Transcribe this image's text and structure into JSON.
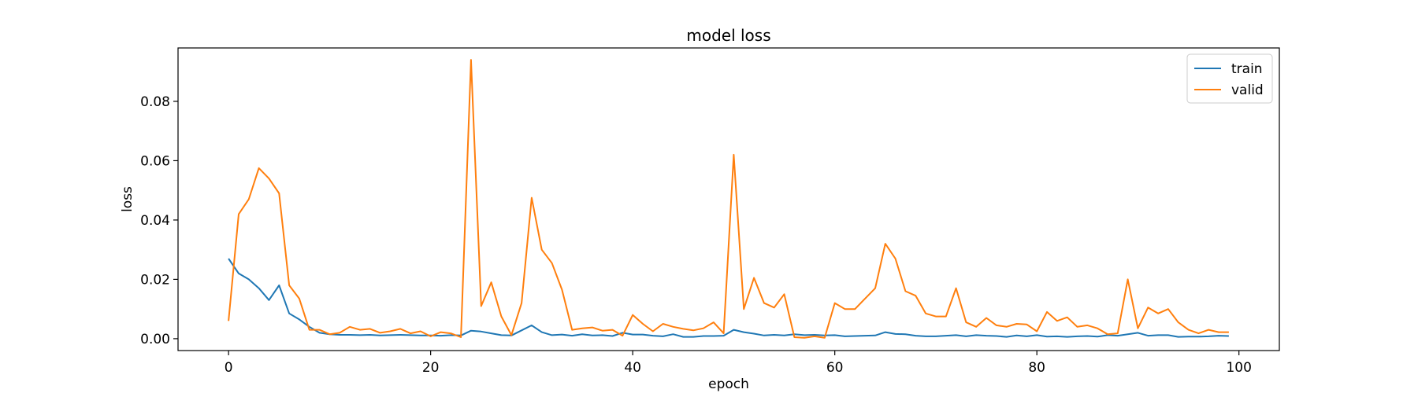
{
  "chart_data": {
    "type": "line",
    "title": "model loss",
    "xlabel": "epoch",
    "ylabel": "loss",
    "xlim": [
      -5,
      104
    ],
    "ylim": [
      -0.004,
      0.098
    ],
    "xticks": [
      0,
      20,
      40,
      60,
      80,
      100
    ],
    "yticks": [
      0.0,
      0.02,
      0.04,
      0.06,
      0.08
    ],
    "xtick_labels": [
      "0",
      "20",
      "40",
      "60",
      "80",
      "100"
    ],
    "ytick_labels": [
      "0.00",
      "0.02",
      "0.04",
      "0.06",
      "0.08"
    ],
    "grid": false,
    "legend": "top-right",
    "x": [
      0,
      1,
      2,
      3,
      4,
      5,
      6,
      7,
      8,
      9,
      10,
      11,
      12,
      13,
      14,
      15,
      16,
      17,
      18,
      19,
      20,
      21,
      22,
      23,
      24,
      25,
      26,
      27,
      28,
      29,
      30,
      31,
      32,
      33,
      34,
      35,
      36,
      37,
      38,
      39,
      40,
      41,
      42,
      43,
      44,
      45,
      46,
      47,
      48,
      49,
      50,
      51,
      52,
      53,
      54,
      55,
      56,
      57,
      58,
      59,
      60,
      61,
      62,
      63,
      64,
      65,
      66,
      67,
      68,
      69,
      70,
      71,
      72,
      73,
      74,
      75,
      76,
      77,
      78,
      79,
      80,
      81,
      82,
      83,
      84,
      85,
      86,
      87,
      88,
      89,
      90,
      91,
      92,
      93,
      94,
      95,
      96,
      97,
      98,
      99
    ],
    "series": [
      {
        "name": "train",
        "color": "#1f77b4",
        "values": [
          0.027,
          0.022,
          0.02,
          0.017,
          0.013,
          0.018,
          0.0085,
          0.0065,
          0.004,
          0.002,
          0.0015,
          0.0013,
          0.0013,
          0.0012,
          0.0013,
          0.0011,
          0.0012,
          0.0013,
          0.0012,
          0.0011,
          0.0011,
          0.001,
          0.0012,
          0.0011,
          0.0027,
          0.0024,
          0.0018,
          0.0012,
          0.0011,
          0.0028,
          0.0045,
          0.0022,
          0.0012,
          0.0014,
          0.001,
          0.0015,
          0.0011,
          0.0012,
          0.0009,
          0.002,
          0.0014,
          0.0014,
          0.001,
          0.0008,
          0.0015,
          0.0006,
          0.0006,
          0.0009,
          0.0009,
          0.001,
          0.003,
          0.0022,
          0.0017,
          0.0011,
          0.0013,
          0.0011,
          0.0015,
          0.0012,
          0.0013,
          0.0011,
          0.0012,
          0.0008,
          0.0009,
          0.001,
          0.0011,
          0.0022,
          0.0016,
          0.0015,
          0.001,
          0.0008,
          0.0008,
          0.001,
          0.0012,
          0.0008,
          0.0012,
          0.001,
          0.0009,
          0.0006,
          0.0011,
          0.0008,
          0.0012,
          0.0007,
          0.0008,
          0.0006,
          0.0008,
          0.0009,
          0.0007,
          0.0012,
          0.001,
          0.0015,
          0.002,
          0.001,
          0.0012,
          0.0012,
          0.0006,
          0.0007,
          0.0007,
          0.0008,
          0.001,
          0.0009
        ]
      },
      {
        "name": "valid",
        "color": "#ff7f0e",
        "values": [
          0.006,
          0.042,
          0.047,
          0.0575,
          0.054,
          0.049,
          0.018,
          0.0135,
          0.003,
          0.003,
          0.0015,
          0.002,
          0.004,
          0.003,
          0.0033,
          0.002,
          0.0025,
          0.0033,
          0.0018,
          0.0025,
          0.0008,
          0.0022,
          0.0018,
          0.0005,
          0.094,
          0.011,
          0.019,
          0.0075,
          0.0012,
          0.012,
          0.0475,
          0.03,
          0.0255,
          0.0165,
          0.003,
          0.0035,
          0.0038,
          0.0027,
          0.003,
          0.001,
          0.008,
          0.005,
          0.0025,
          0.005,
          0.004,
          0.0033,
          0.0028,
          0.0035,
          0.0055,
          0.0018,
          0.062,
          0.01,
          0.0205,
          0.012,
          0.0105,
          0.015,
          0.0005,
          0.0003,
          0.0008,
          0.0003,
          0.012,
          0.01,
          0.01,
          0.0135,
          0.017,
          0.032,
          0.027,
          0.016,
          0.0145,
          0.0085,
          0.0075,
          0.0075,
          0.017,
          0.0055,
          0.004,
          0.007,
          0.0045,
          0.004,
          0.005,
          0.0048,
          0.0025,
          0.009,
          0.006,
          0.0072,
          0.004,
          0.0045,
          0.0035,
          0.0015,
          0.0018,
          0.02,
          0.0035,
          0.0105,
          0.0085,
          0.01,
          0.0055,
          0.003,
          0.0018,
          0.003,
          0.0022,
          0.0022
        ]
      }
    ]
  }
}
